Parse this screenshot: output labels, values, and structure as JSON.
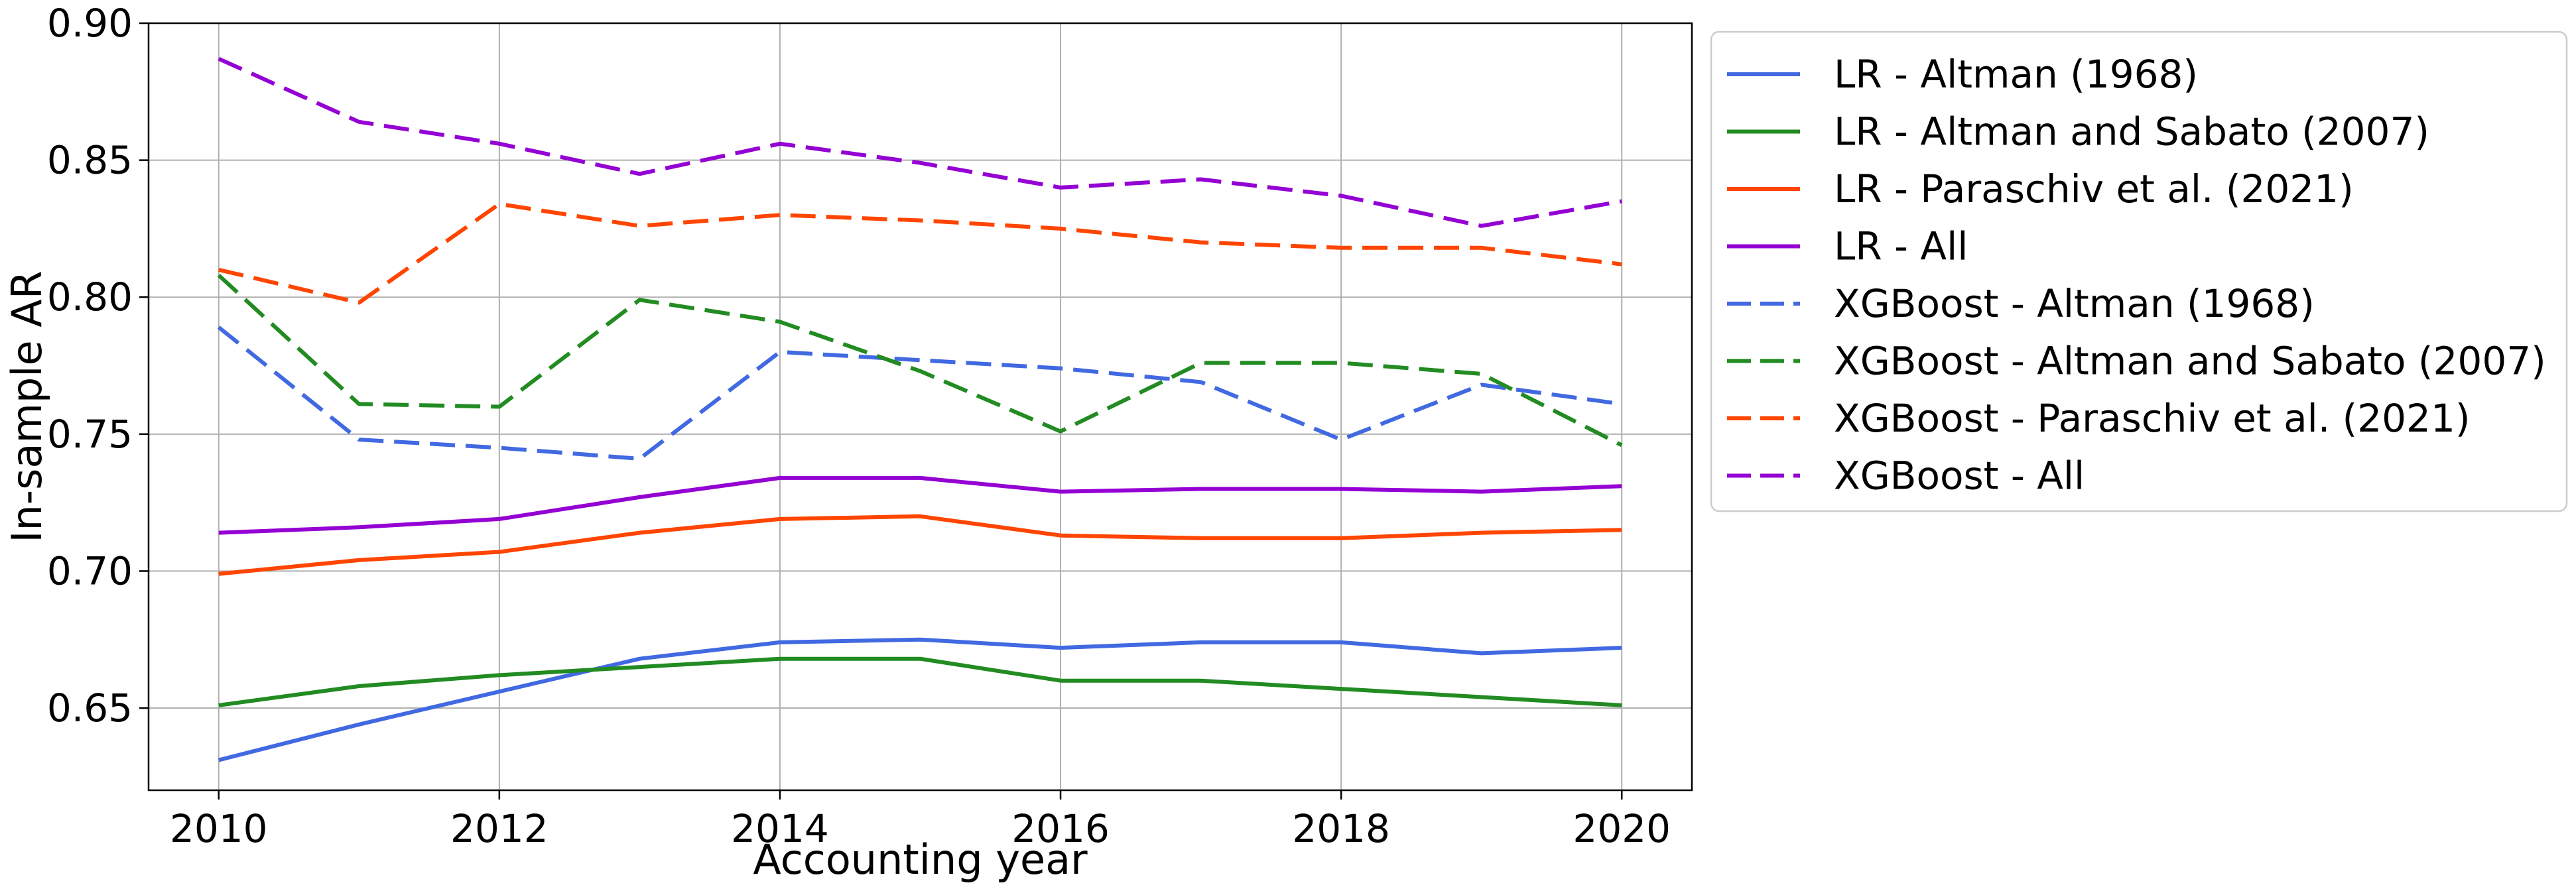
{
  "chart_data": {
    "type": "line",
    "xlabel": "Accounting year",
    "ylabel": "In-sample AR",
    "xlim": [
      2009.5,
      2020.5
    ],
    "ylim": [
      0.62,
      0.9
    ],
    "x_ticks": [
      2010,
      2012,
      2014,
      2016,
      2018,
      2020
    ],
    "x_tick_labels": [
      "2010",
      "2012",
      "2014",
      "2016",
      "2018",
      "2020"
    ],
    "y_ticks": [
      0.65,
      0.7,
      0.75,
      0.8,
      0.85,
      0.9
    ],
    "y_tick_labels": [
      "0.65",
      "0.70",
      "0.75",
      "0.80",
      "0.85",
      "0.90"
    ],
    "grid": true,
    "legend_position": "outside-right-top",
    "x": [
      2010,
      2011,
      2012,
      2013,
      2014,
      2015,
      2016,
      2017,
      2018,
      2019,
      2020
    ],
    "series": [
      {
        "name": "LR - Altman (1968)",
        "color": "#4169e1",
        "style": "solid",
        "values": [
          0.631,
          0.644,
          0.656,
          0.668,
          0.674,
          0.675,
          0.672,
          0.674,
          0.674,
          0.67,
          0.672
        ]
      },
      {
        "name": "LR - Altman and Sabato (2007)",
        "color": "#228b22",
        "style": "solid",
        "values": [
          0.651,
          0.658,
          0.662,
          0.665,
          0.668,
          0.668,
          0.66,
          0.66,
          0.657,
          0.654,
          0.651
        ]
      },
      {
        "name": "LR - Paraschiv et al. (2021)",
        "color": "#ff4500",
        "style": "solid",
        "values": [
          0.699,
          0.704,
          0.707,
          0.714,
          0.719,
          0.72,
          0.713,
          0.712,
          0.712,
          0.714,
          0.715
        ]
      },
      {
        "name": "LR - All",
        "color": "#9400d3",
        "style": "solid",
        "values": [
          0.714,
          0.716,
          0.719,
          0.727,
          0.734,
          0.734,
          0.729,
          0.73,
          0.73,
          0.729,
          0.731
        ]
      },
      {
        "name": "XGBoost - Altman (1968)",
        "color": "#4169e1",
        "style": "dashed",
        "values": [
          0.789,
          0.748,
          0.745,
          0.741,
          0.78,
          0.777,
          0.774,
          0.769,
          0.748,
          0.768,
          0.761
        ]
      },
      {
        "name": "XGBoost - Altman and Sabato (2007)",
        "color": "#228b22",
        "style": "dashed",
        "values": [
          0.808,
          0.761,
          0.76,
          0.799,
          0.791,
          0.773,
          0.751,
          0.776,
          0.776,
          0.772,
          0.746
        ]
      },
      {
        "name": "XGBoost - Paraschiv et al. (2021)",
        "color": "#ff4500",
        "style": "dashed",
        "values": [
          0.81,
          0.798,
          0.834,
          0.826,
          0.83,
          0.828,
          0.825,
          0.82,
          0.818,
          0.818,
          0.812
        ]
      },
      {
        "name": "XGBoost - All",
        "color": "#9400d3",
        "style": "dashed",
        "values": [
          0.887,
          0.864,
          0.856,
          0.845,
          0.856,
          0.849,
          0.84,
          0.843,
          0.837,
          0.826,
          0.835
        ]
      }
    ]
  }
}
